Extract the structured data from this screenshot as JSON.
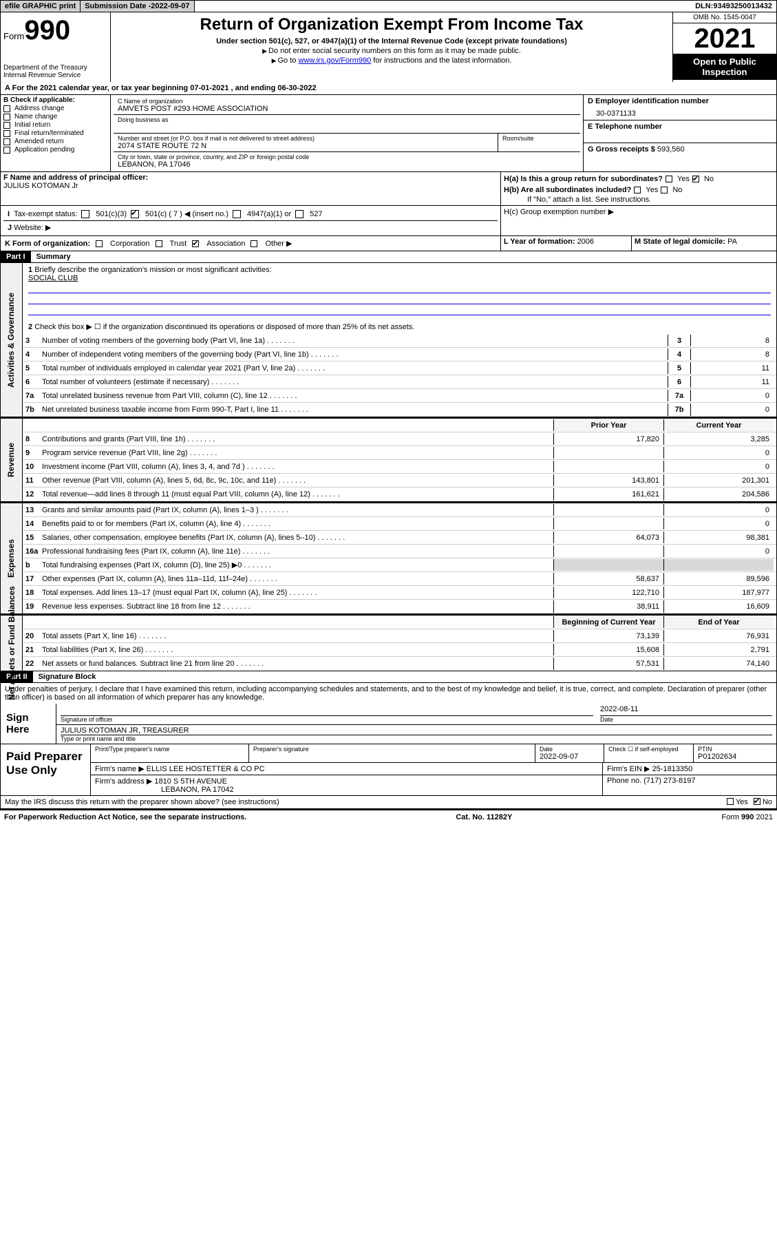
{
  "topbar": {
    "efile": "efile GRAPHIC print",
    "subdate_lbl": "Submission Date - ",
    "subdate": "2022-09-07",
    "dln_lbl": "DLN: ",
    "dln": "93493250013432"
  },
  "header": {
    "form_word": "Form",
    "form_num": "990",
    "dept": "Department of the Treasury\nInternal Revenue Service",
    "title": "Return of Organization Exempt From Income Tax",
    "sub": "Under section 501(c), 527, or 4947(a)(1) of the Internal Revenue Code (except private foundations)",
    "note1": "Do not enter social security numbers on this form as it may be made public.",
    "note2_pre": "Go to ",
    "note2_link": "www.irs.gov/Form990",
    "note2_post": " for instructions and the latest information.",
    "omb": "OMB No. 1545-0047",
    "year": "2021",
    "open": "Open to Public Inspection"
  },
  "period": {
    "text": "For the 2021 calendar year, or tax year beginning ",
    "begin": "07-01-2021",
    "mid": " , and ending ",
    "end": "06-30-2022"
  },
  "boxB": {
    "lbl": "B Check if applicable:",
    "opts": [
      "Address change",
      "Name change",
      "Initial return",
      "Final return/terminated",
      "Amended return",
      "Application pending"
    ]
  },
  "boxC": {
    "lbl": "C Name of organization",
    "name": "AMVETS POST #293 HOME ASSOCIATION",
    "dba_lbl": "Doing business as",
    "street_lbl": "Number and street (or P.O. box if mail is not delivered to street address)",
    "room_lbl": "Room/suite",
    "street": "2074 STATE ROUTE 72 N",
    "city_lbl": "City or town, state or province, country, and ZIP or foreign postal code",
    "city": "LEBANON, PA  17046"
  },
  "boxD": {
    "lbl": "D Employer identification number",
    "val": "30-0371133"
  },
  "boxE": {
    "lbl": "E Telephone number"
  },
  "boxG": {
    "lbl": "G Gross receipts $ ",
    "val": "593,560"
  },
  "boxF": {
    "lbl": "F Name and address of principal officer:",
    "name": "JULIUS KOTOMAN Jr"
  },
  "boxH": {
    "ha": "H(a)  Is this a group return for subordinates?",
    "hb": "H(b)  Are all subordinates included?",
    "hb_note": "If \"No,\" attach a list. See instructions.",
    "hc": "H(c)  Group exemption number ▶",
    "yes": "Yes",
    "no": "No"
  },
  "boxI": {
    "lbl": "Tax-exempt status:",
    "o1": "501(c)(3)",
    "o2": "501(c) ( 7 ) ◀ (insert no.)",
    "o3": "4947(a)(1) or",
    "o4": "527"
  },
  "boxJ": "Website: ▶",
  "boxK": {
    "lbl": "K Form of organization:",
    "opts": [
      "Corporation",
      "Trust",
      "Association",
      "Other ▶"
    ]
  },
  "boxL": {
    "lbl": "L Year of formation: ",
    "val": "2006"
  },
  "boxM": {
    "lbl": "M State of legal domicile: ",
    "val": "PA"
  },
  "part1": {
    "hdr": "Part I",
    "title": "Summary"
  },
  "summary": {
    "q1": "Briefly describe the organization's mission or most significant activities:",
    "mission": "SOCIAL CLUB",
    "q2": "Check this box ▶ ☐ if the organization discontinued its operations or disposed of more than 25% of its net assets.",
    "lines_gov": [
      {
        "n": "3",
        "d": "Number of voting members of the governing body (Part VI, line 1a)",
        "v": "8"
      },
      {
        "n": "4",
        "d": "Number of independent voting members of the governing body (Part VI, line 1b)",
        "v": "8"
      },
      {
        "n": "5",
        "d": "Total number of individuals employed in calendar year 2021 (Part V, line 2a)",
        "v": "11"
      },
      {
        "n": "6",
        "d": "Total number of volunteers (estimate if necessary)",
        "v": "11"
      },
      {
        "n": "7a",
        "d": "Total unrelated business revenue from Part VIII, column (C), line 12",
        "v": "0"
      },
      {
        "n": "7b",
        "d": "Net unrelated business taxable income from Form 990-T, Part I, line 11",
        "v": "0"
      }
    ],
    "hdr_prior": "Prior Year",
    "hdr_cur": "Current Year",
    "rev_lines": [
      {
        "n": "8",
        "d": "Contributions and grants (Part VIII, line 1h)",
        "p": "17,820",
        "c": "3,285"
      },
      {
        "n": "9",
        "d": "Program service revenue (Part VIII, line 2g)",
        "p": "",
        "c": "0"
      },
      {
        "n": "10",
        "d": "Investment income (Part VIII, column (A), lines 3, 4, and 7d )",
        "p": "",
        "c": "0"
      },
      {
        "n": "11",
        "d": "Other revenue (Part VIII, column (A), lines 5, 6d, 8c, 9c, 10c, and 11e)",
        "p": "143,801",
        "c": "201,301"
      },
      {
        "n": "12",
        "d": "Total revenue—add lines 8 through 11 (must equal Part VIII, column (A), line 12)",
        "p": "161,621",
        "c": "204,586"
      }
    ],
    "exp_lines": [
      {
        "n": "13",
        "d": "Grants and similar amounts paid (Part IX, column (A), lines 1–3 )",
        "p": "",
        "c": "0"
      },
      {
        "n": "14",
        "d": "Benefits paid to or for members (Part IX, column (A), line 4)",
        "p": "",
        "c": "0"
      },
      {
        "n": "15",
        "d": "Salaries, other compensation, employee benefits (Part IX, column (A), lines 5–10)",
        "p": "64,073",
        "c": "98,381"
      },
      {
        "n": "16a",
        "d": "Professional fundraising fees (Part IX, column (A), line 11e)",
        "p": "",
        "c": "0"
      },
      {
        "n": "b",
        "d": "Total fundraising expenses (Part IX, column (D), line 25) ▶0",
        "p": "GREY",
        "c": "GREY"
      },
      {
        "n": "17",
        "d": "Other expenses (Part IX, column (A), lines 11a–11d, 11f–24e)",
        "p": "58,637",
        "c": "89,596"
      },
      {
        "n": "18",
        "d": "Total expenses. Add lines 13–17 (must equal Part IX, column (A), line 25)",
        "p": "122,710",
        "c": "187,977"
      },
      {
        "n": "19",
        "d": "Revenue less expenses. Subtract line 18 from line 12",
        "p": "38,911",
        "c": "16,609"
      }
    ],
    "hdr_beg": "Beginning of Current Year",
    "hdr_end": "End of Year",
    "na_lines": [
      {
        "n": "20",
        "d": "Total assets (Part X, line 16)",
        "p": "73,139",
        "c": "76,931"
      },
      {
        "n": "21",
        "d": "Total liabilities (Part X, line 26)",
        "p": "15,608",
        "c": "2,791"
      },
      {
        "n": "22",
        "d": "Net assets or fund balances. Subtract line 21 from line 20",
        "p": "57,531",
        "c": "74,140"
      }
    ]
  },
  "sidebars": {
    "gov": "Activities & Governance",
    "rev": "Revenue",
    "exp": "Expenses",
    "na": "Net Assets or Fund Balances"
  },
  "part2": {
    "hdr": "Part II",
    "title": "Signature Block"
  },
  "sig": {
    "decl": "Under penalties of perjury, I declare that I have examined this return, including accompanying schedules and statements, and to the best of my knowledge and belief, it is true, correct, and complete. Declaration of preparer (other than officer) is based on all information of which preparer has any knowledge.",
    "here": "Sign Here",
    "sig_lbl": "Signature of officer",
    "date_lbl": "Date",
    "date": "2022-08-11",
    "name_lbl": "Type or print name and title",
    "name": "JULIUS KOTOMAN JR, TREASURER"
  },
  "paid": {
    "lbl": "Paid Preparer Use Only",
    "h1": "Print/Type preparer's name",
    "h2": "Preparer's signature",
    "h3": "Date",
    "date": "2022-09-07",
    "h4": "Check ☐ if self-employed",
    "h5": "PTIN",
    "ptin": "P01202634",
    "firm_name_lbl": "Firm's name    ▶",
    "firm_name": "ELLIS LEE HOSTETTER & CO PC",
    "firm_ein_lbl": "Firm's EIN ▶",
    "firm_ein": "25-1813350",
    "firm_addr_lbl": "Firm's address ▶",
    "firm_addr": "1810 S 5TH AVENUE",
    "firm_city": "LEBANON, PA  17042",
    "phone_lbl": "Phone no. ",
    "phone": "(717) 273-8197"
  },
  "discuss": "May the IRS discuss this return with the preparer shown above? (see instructions)",
  "footer": {
    "left": "For Paperwork Reduction Act Notice, see the separate instructions.",
    "mid": "Cat. No. 11282Y",
    "right": "Form 990 (2021)"
  }
}
